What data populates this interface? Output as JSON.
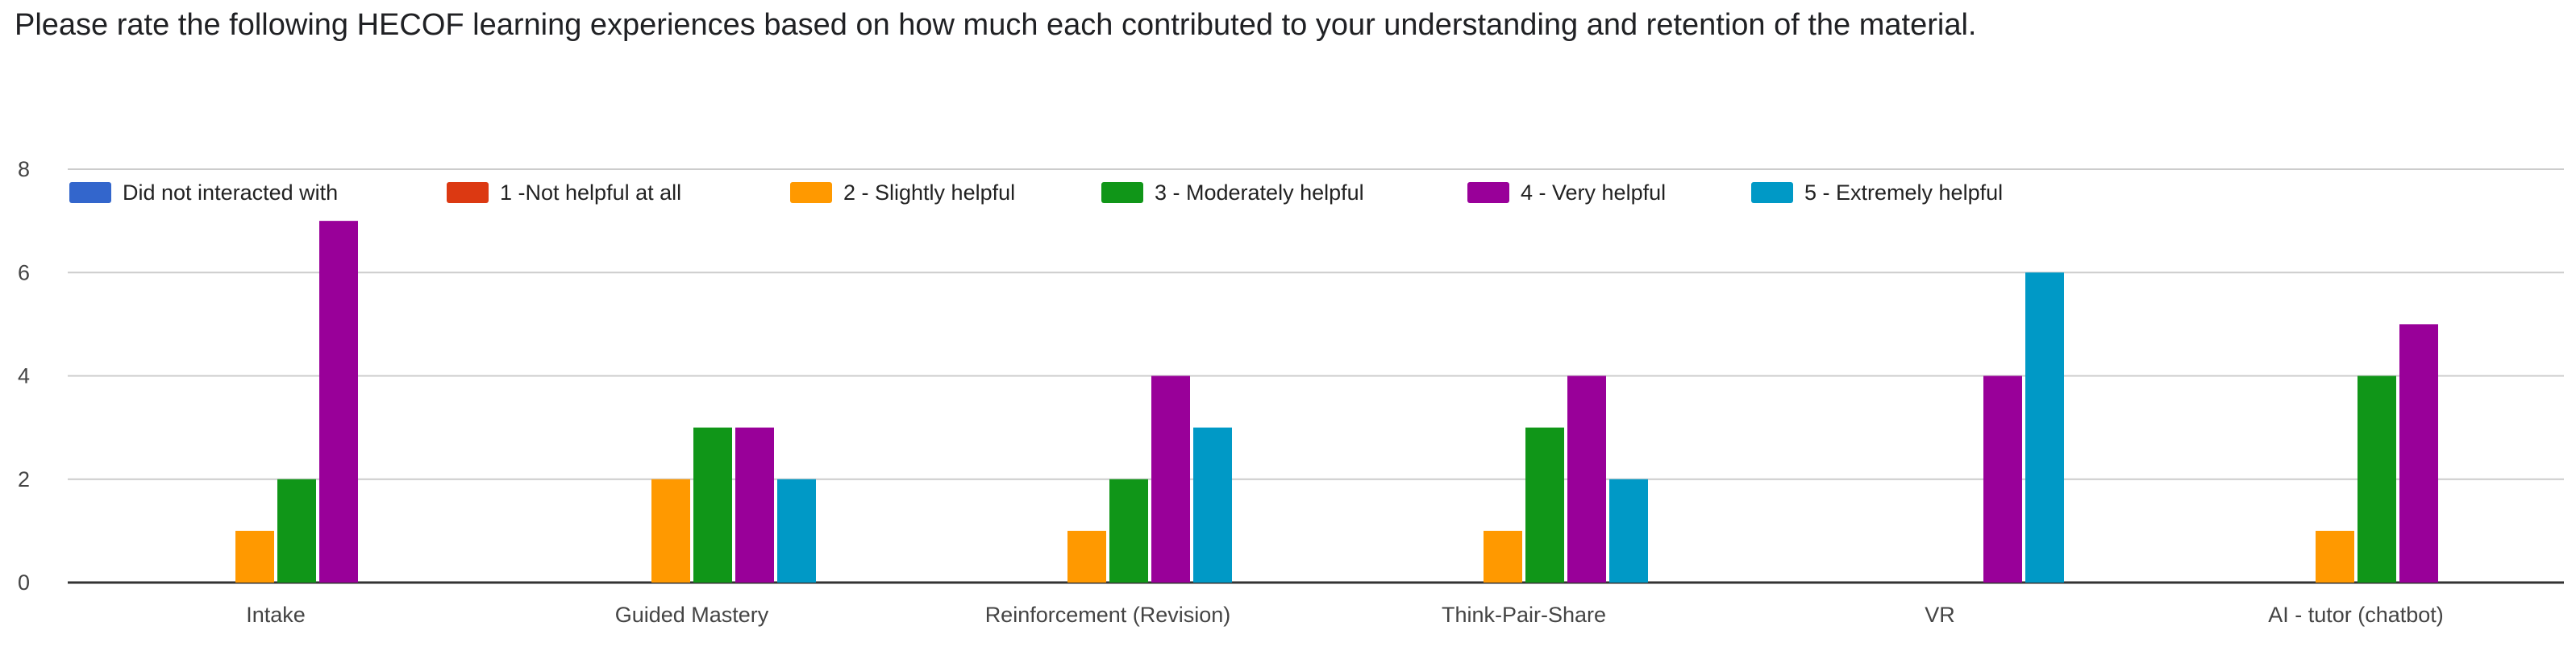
{
  "question": "Please rate the following HECOF learning experiences based on how much each contributed to your understanding and retention of the material.",
  "chart_data": {
    "type": "bar",
    "title": "",
    "xlabel": "",
    "ylabel": "",
    "ylim": [
      0,
      8
    ],
    "yticks": [
      0,
      2,
      4,
      6,
      8
    ],
    "grid": true,
    "legend_position": "top",
    "categories": [
      "Intake",
      "Guided Mastery",
      "Reinforcement (Revision)",
      "Think-Pair-Share",
      "VR",
      "AI - tutor (chatbot)"
    ],
    "series": [
      {
        "name": "Did not interacted with",
        "color": "#3366cc",
        "values": [
          0,
          0,
          0,
          0,
          0,
          0
        ]
      },
      {
        "name": "1 -Not helpful at all",
        "color": "#dc3912",
        "values": [
          0,
          0,
          0,
          0,
          0,
          0
        ]
      },
      {
        "name": "2 - Slightly helpful",
        "color": "#ff9900",
        "values": [
          1,
          2,
          1,
          1,
          0,
          1
        ]
      },
      {
        "name": "3 - Moderately helpful",
        "color": "#109618",
        "values": [
          2,
          3,
          2,
          3,
          0,
          4
        ]
      },
      {
        "name": "4 - Very helpful",
        "color": "#990099",
        "values": [
          7,
          3,
          4,
          4,
          4,
          5
        ]
      },
      {
        "name": "5 - Extremely helpful",
        "color": "#0099c6",
        "values": [
          0,
          2,
          3,
          2,
          6,
          0
        ]
      }
    ]
  }
}
